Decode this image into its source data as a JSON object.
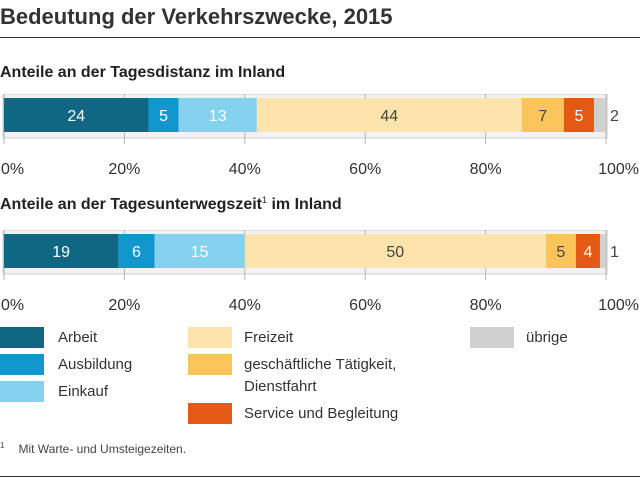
{
  "title": "Bedeutung der Verkehrszwecke, 2015",
  "subtitles": {
    "chart1": "Anteile an der Tagesdistanz im Inland",
    "chart2_main": "Anteile an der Tagesunterwegszeit",
    "chart2_sup": "1",
    "chart2_tail": " im Inland"
  },
  "colors": {
    "Arbeit": "#0f6784",
    "Ausbildung": "#1196ce",
    "Einkauf": "#84d2ee",
    "Freizeit": "#fde4ad",
    "geschäftliche Tätigkeit, Dienstfahrt": "#fcc55c",
    "Service und Begleitung": "#e45a14",
    "übrige": "#d0d0d0"
  },
  "chart_data": [
    {
      "type": "bar",
      "orientation": "horizontal-stacked",
      "title": "Anteile an der Tagesdistanz im Inland",
      "categories": [
        "Arbeit",
        "Ausbildung",
        "Einkauf",
        "Freizeit",
        "geschäftliche Tätigkeit, Dienstfahrt",
        "Service und Begleitung",
        "übrige"
      ],
      "values": [
        24,
        5,
        13,
        44,
        7,
        5,
        2
      ],
      "xlim": [
        0,
        100
      ],
      "xticks": [
        "0%",
        "20%",
        "40%",
        "60%",
        "80%",
        "100%"
      ]
    },
    {
      "type": "bar",
      "orientation": "horizontal-stacked",
      "title": "Anteile an der Tagesunterwegszeit im Inland",
      "categories": [
        "Arbeit",
        "Ausbildung",
        "Einkauf",
        "Freizeit",
        "geschäftliche Tätigkeit, Dienstfahrt",
        "Service und Begleitung",
        "übrige"
      ],
      "values": [
        19,
        6,
        15,
        50,
        5,
        4,
        1
      ],
      "xlim": [
        0,
        100
      ],
      "xticks": [
        "0%",
        "20%",
        "40%",
        "60%",
        "80%",
        "100%"
      ]
    }
  ],
  "legend": {
    "col1": [
      "Arbeit",
      "Ausbildung",
      "Einkauf"
    ],
    "col2": [
      "Freizeit",
      "geschäftliche Tätigkeit,",
      "Dienstfahrt",
      "Service und Begleitung"
    ],
    "col3": [
      "übrige"
    ]
  },
  "footnote": {
    "mark": "1",
    "text": "Mit Warte- und Umsteigezeiten."
  }
}
